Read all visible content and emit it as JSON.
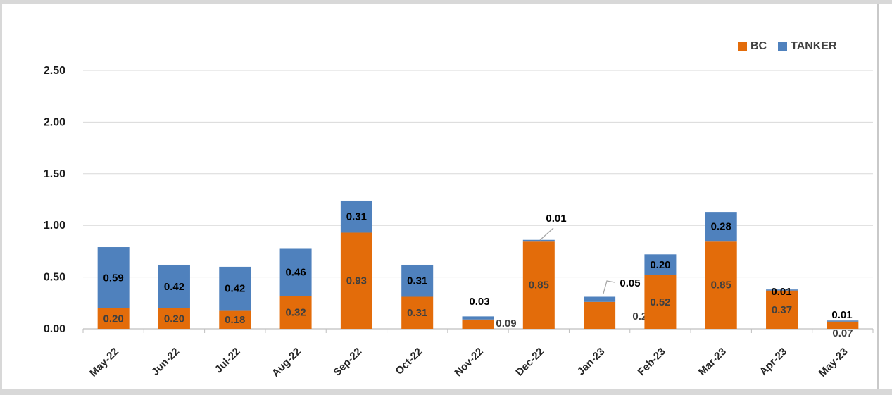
{
  "legend": {
    "items": [
      {
        "label": "BC",
        "color": "#E36C0A"
      },
      {
        "label": "TANKER",
        "color": "#4F81BD"
      }
    ]
  },
  "chart_data": {
    "type": "bar",
    "stacked": true,
    "title": "",
    "xlabel": "",
    "ylabel": "",
    "categories": [
      "May-22",
      "Jun-22",
      "Jul-22",
      "Aug-22",
      "Sep-22",
      "Oct-22",
      "Nov-22",
      "Dec-22",
      "Jan-23",
      "Feb-23",
      "Mar-23",
      "Apr-23",
      "May-23"
    ],
    "series": [
      {
        "name": "BC",
        "color": "#E36C0A",
        "data_label_color": "#3F3F3F",
        "values": [
          0.2,
          0.2,
          0.18,
          0.32,
          0.93,
          0.31,
          0.09,
          0.85,
          0.26,
          0.52,
          0.85,
          0.37,
          0.07
        ]
      },
      {
        "name": "TANKER",
        "color": "#4F81BD",
        "data_label_color": "#000000",
        "values": [
          0.59,
          0.42,
          0.42,
          0.46,
          0.31,
          0.31,
          0.03,
          0.01,
          0.05,
          0.2,
          0.28,
          0.01,
          0.01
        ]
      }
    ],
    "ylim": [
      0,
      2.5
    ],
    "ytick_labels": [
      "0.00",
      "0.50",
      "1.00",
      "1.50",
      "2.00",
      "2.50"
    ],
    "grid": true,
    "legend_position": "top-right",
    "data_labels_shown": true
  }
}
